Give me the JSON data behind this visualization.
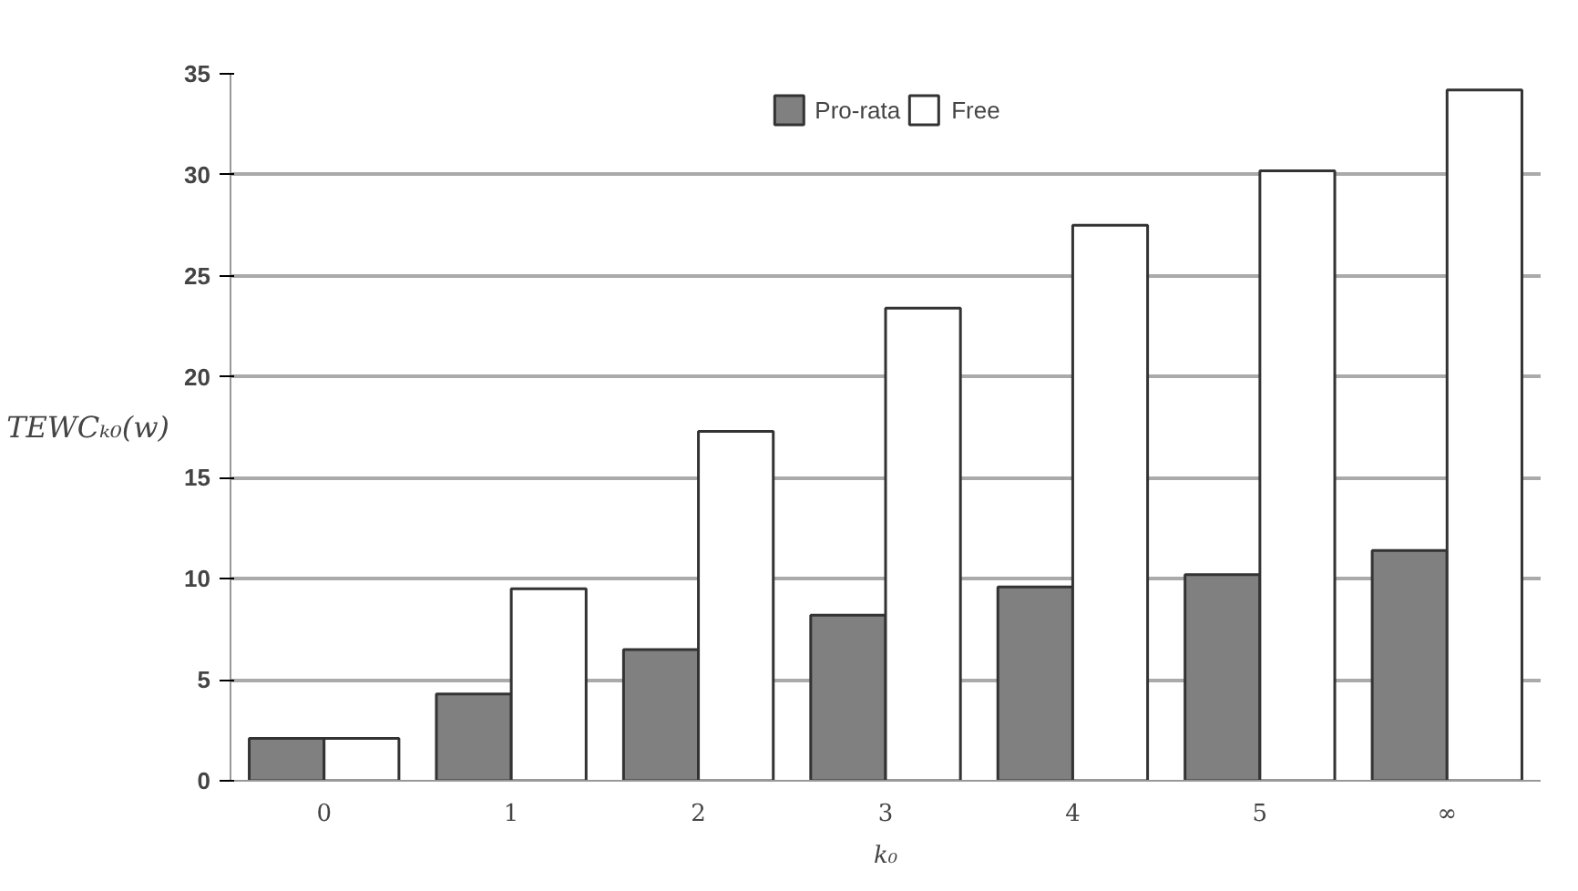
{
  "chart_data": {
    "type": "bar",
    "categories": [
      "0",
      "1",
      "2",
      "3",
      "4",
      "5",
      "∞"
    ],
    "series": [
      {
        "name": "Pro-rata",
        "color": "#808080",
        "values": [
          2.1,
          4.3,
          6.5,
          8.2,
          9.6,
          10.2,
          11.4
        ]
      },
      {
        "name": "Free",
        "color": "#ffffff",
        "values": [
          2.1,
          9.5,
          17.3,
          23.4,
          27.5,
          30.2,
          34.2
        ]
      }
    ],
    "xlabel": "k₀",
    "ylabel": "TEWCₖ₀(w)",
    "ylim": [
      0,
      35
    ],
    "yticks": [
      0,
      5,
      10,
      15,
      20,
      25,
      30,
      35
    ],
    "grid": "y",
    "legend": "top"
  }
}
